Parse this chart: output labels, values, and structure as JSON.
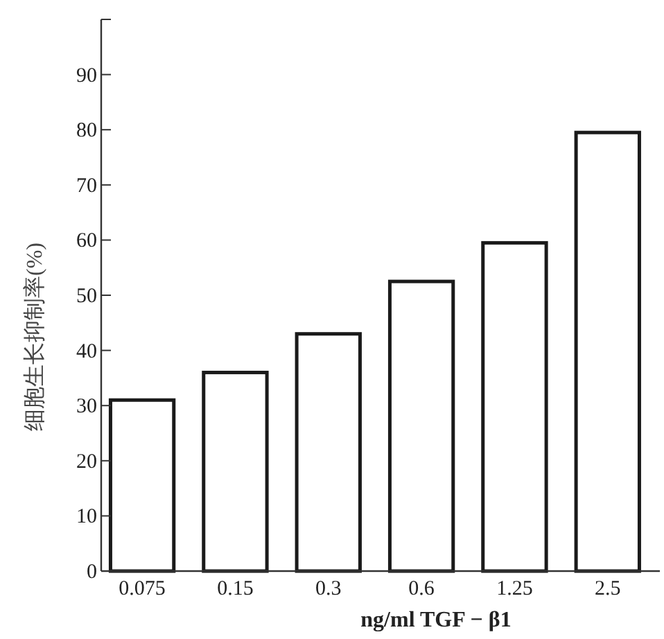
{
  "chart_data": {
    "type": "bar",
    "xlabel": "ng/ml TGF − β1",
    "ylabel": "细胞生长抑制率(%)",
    "categories": [
      "0.075",
      "0.15",
      "0.3",
      "0.6",
      "1.25",
      "2.5"
    ],
    "series": [
      {
        "color": "#ffffff",
        "values": [
          31,
          36,
          43,
          52.5,
          59.5,
          79.5
        ]
      }
    ],
    "ylim": [
      0,
      100
    ],
    "yticks": [
      0,
      10,
      20,
      30,
      40,
      50,
      60,
      70,
      80,
      90,
      {
        "value": 100,
        "label": null
      }
    ],
    "grid": false
  }
}
